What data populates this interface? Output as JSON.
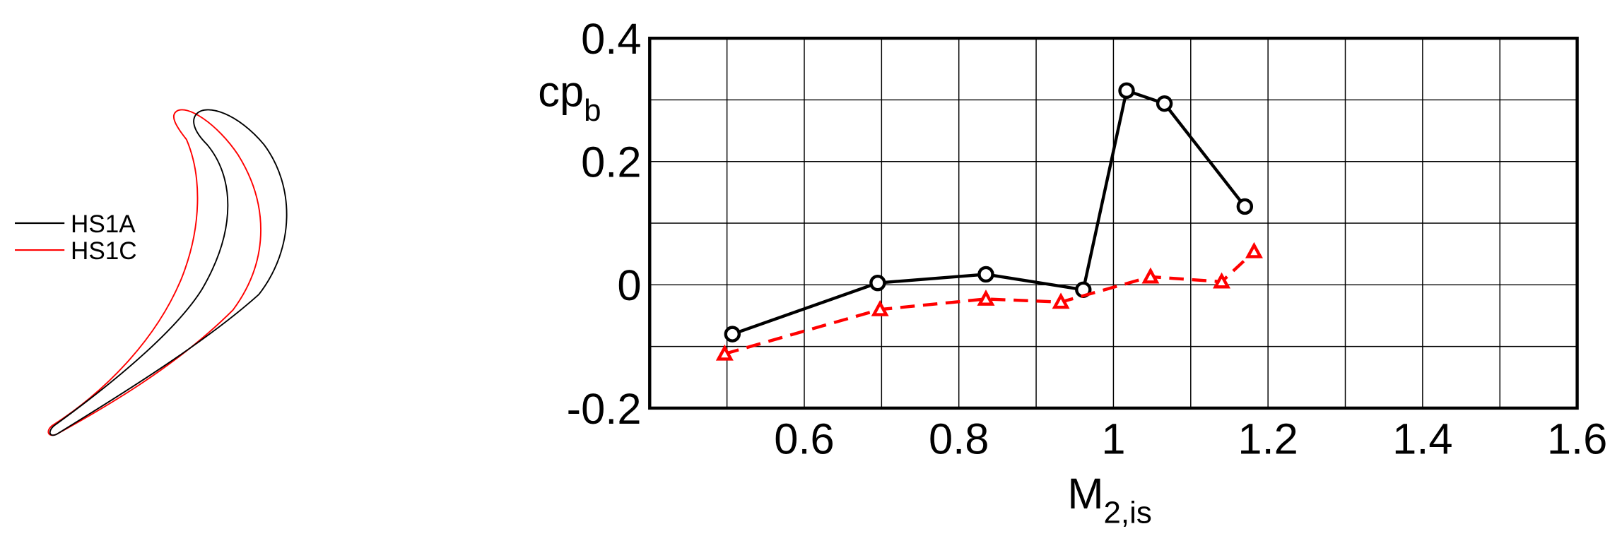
{
  "chart_data": {
    "type": "line",
    "x_label": "M",
    "x_label_sub": "2,is",
    "y_label": "cp",
    "y_label_sub": "b",
    "xlim": [
      0.4,
      1.6
    ],
    "ylim": [
      -0.2,
      0.4
    ],
    "xticks": [
      0.6,
      0.8,
      1,
      1.2,
      1.4,
      1.6
    ],
    "xminor": [
      0.5,
      0.7,
      0.9,
      1.1,
      1.3,
      1.5
    ],
    "yticks": [
      -0.2,
      0,
      0.2,
      0.4
    ],
    "yminor": [
      -0.1,
      0.1,
      0.3
    ],
    "grid": true,
    "series": [
      {
        "name": "HS1A",
        "color": "#000000",
        "marker": "circle",
        "dash": false,
        "x": [
          0.507,
          0.695,
          0.835,
          0.961,
          1.017,
          1.066,
          1.17
        ],
        "values": [
          -0.08,
          0.003,
          0.017,
          -0.008,
          0.315,
          0.294,
          0.127
        ]
      },
      {
        "name": "HS1C",
        "color": "#ff0000",
        "marker": "triangle",
        "dash": true,
        "x": [
          0.497,
          0.698,
          0.835,
          0.932,
          1.048,
          1.14,
          1.182
        ],
        "values": [
          -0.112,
          -0.04,
          -0.023,
          -0.028,
          0.013,
          0.005,
          0.054
        ]
      }
    ]
  }
}
